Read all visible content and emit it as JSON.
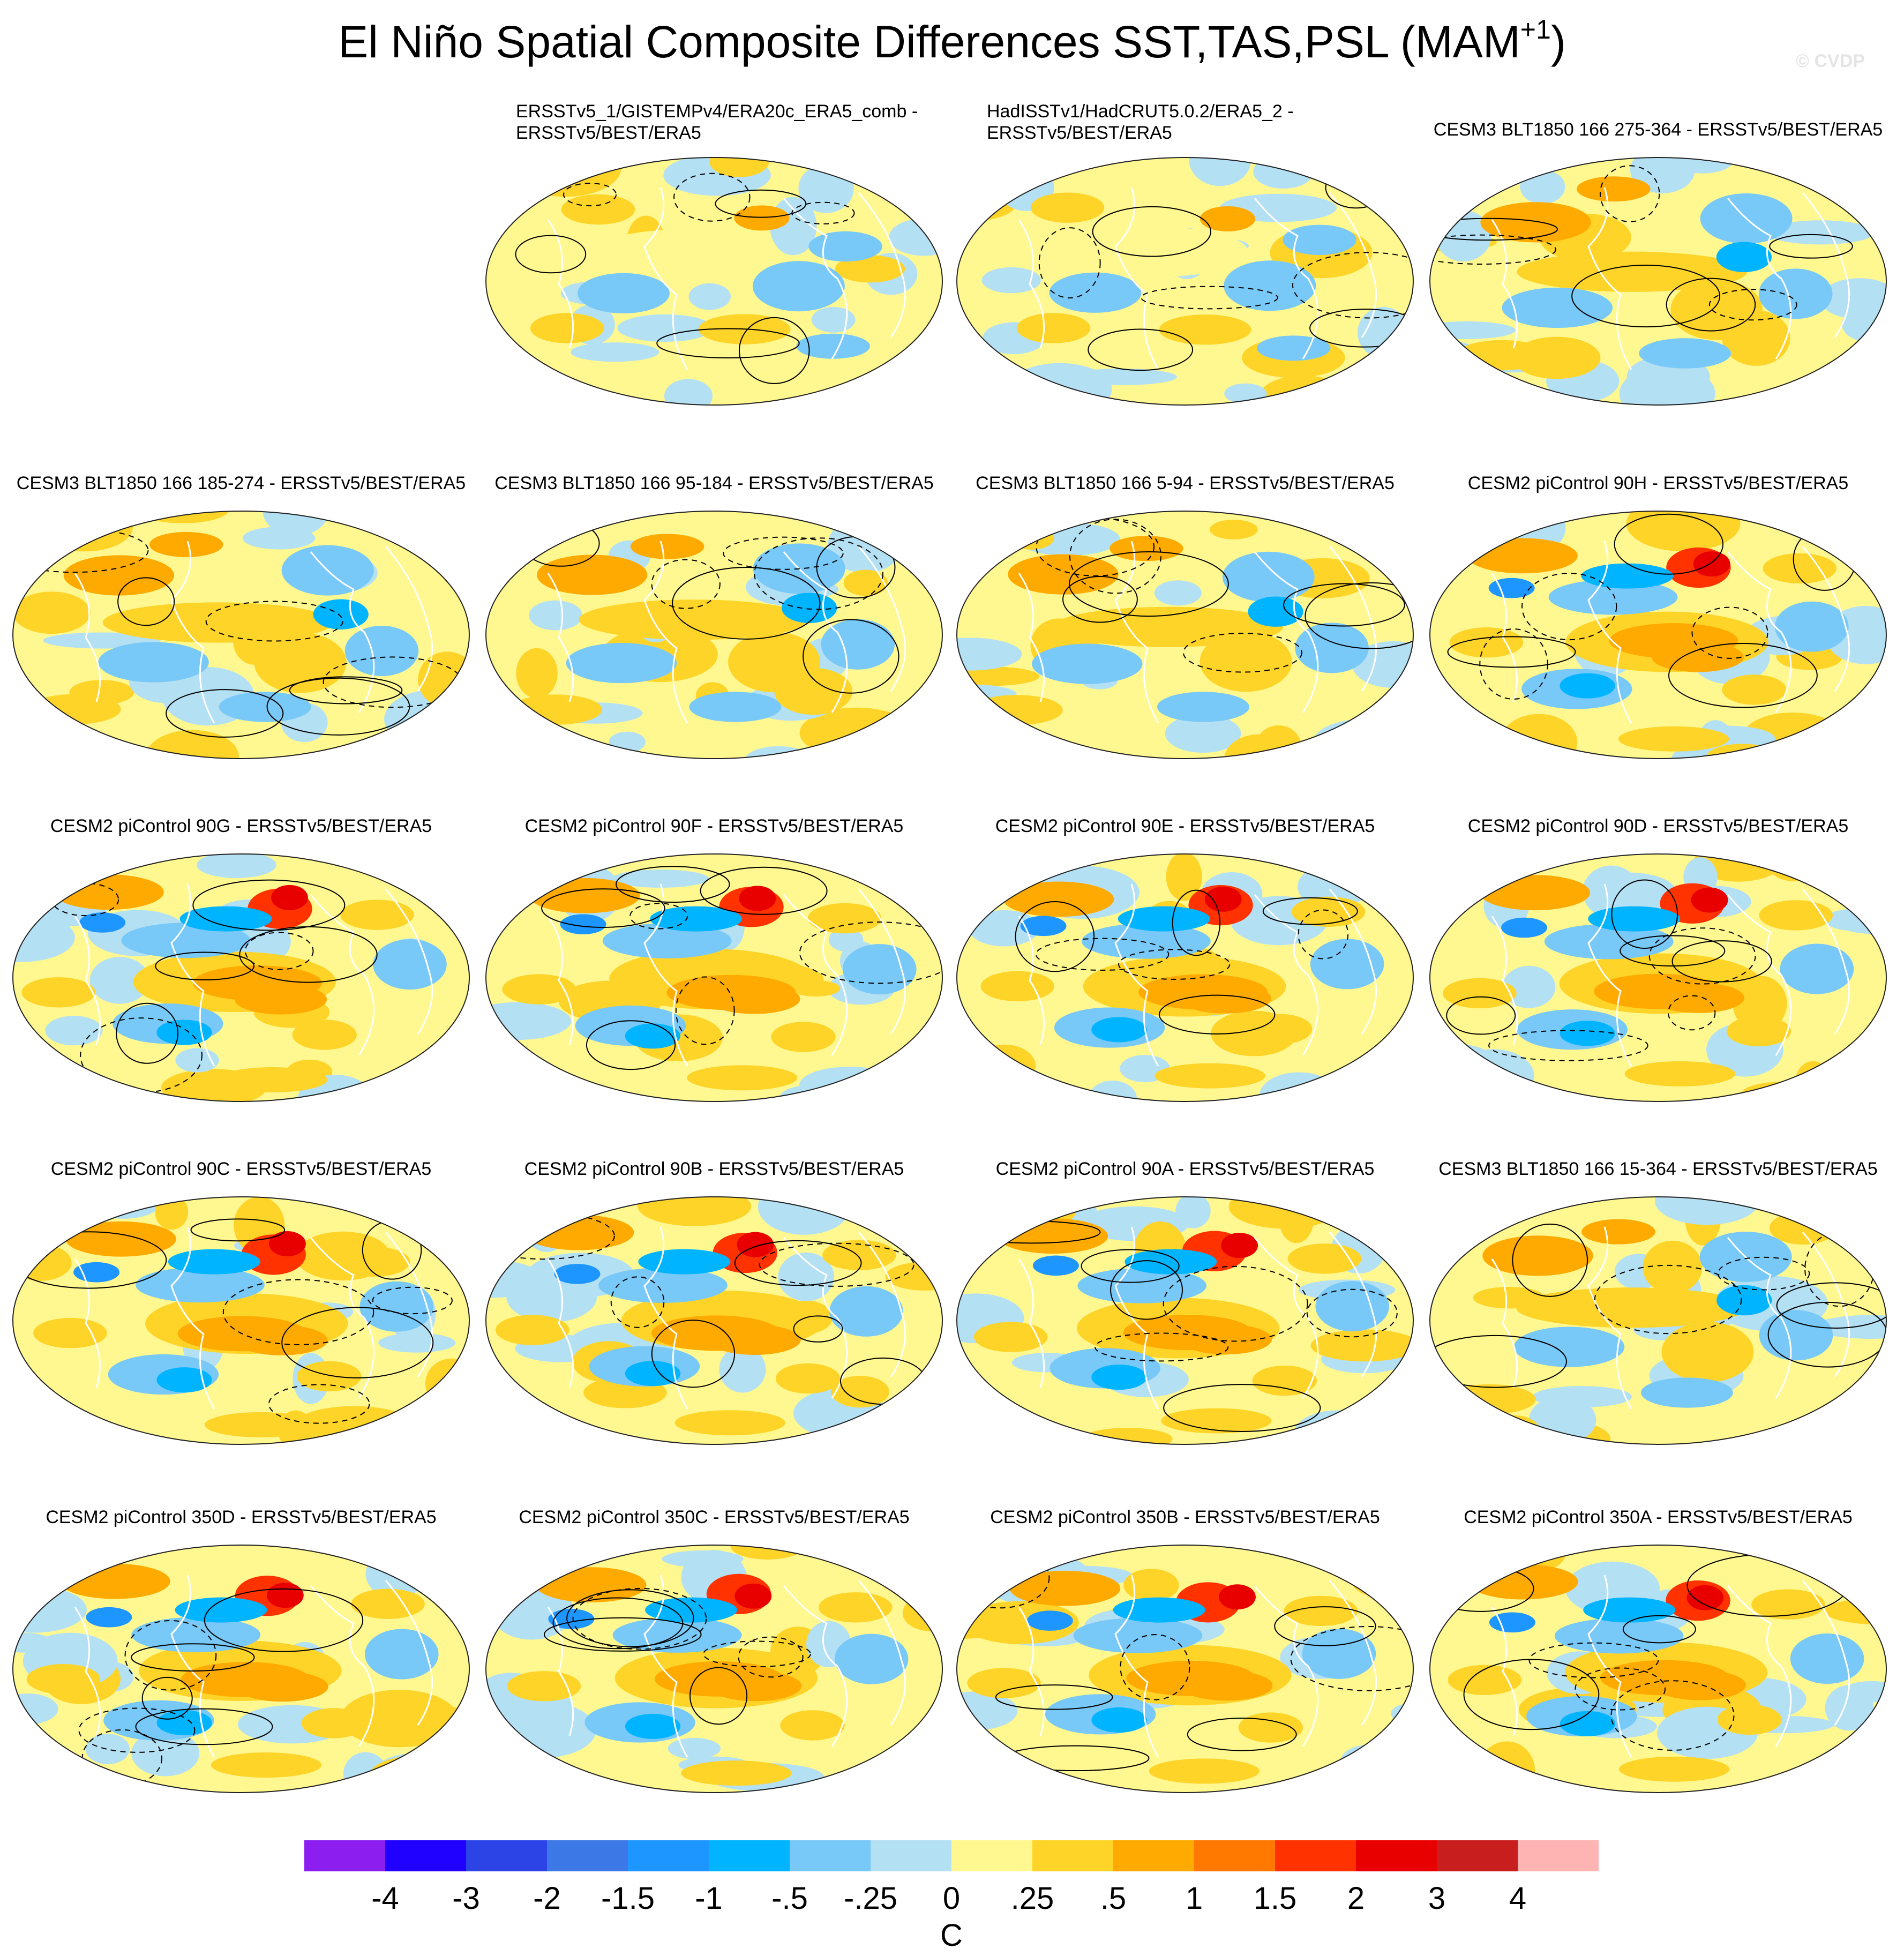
{
  "chart_data": {
    "type": "heatmap",
    "title": "El Niño Spatial Composite Differences SST,TAS,PSL (MAM",
    "title_superscript": "+1",
    "title_suffix": ")",
    "watermark": "© CVDP",
    "projection": "global map (Robinson-like ellipse), shaded SST/TAS differences with black PSL contours (solid positive, dashed negative) and white coastlines",
    "panels": [
      {
        "title_lines": [
          "ERSSTv5_1/GISTEMPv4/ERA20c_ERA5_comb -",
          "ERSSTv5/BEST/ERA5"
        ],
        "pattern": "obs"
      },
      {
        "title_lines": [
          "HadISSTv1/HadCRUT5.0.2/ERA5_2 -",
          "ERSSTv5/BEST/ERA5"
        ],
        "pattern": "obs"
      },
      {
        "title_lines": [
          "CESM3 BLT1850 166 275-364 - ERSSTv5/BEST/ERA5"
        ],
        "pattern": "cesm3"
      },
      {
        "title_lines": [
          "CESM3 BLT1850 166 185-274 - ERSSTv5/BEST/ERA5"
        ],
        "pattern": "cesm3"
      },
      {
        "title_lines": [
          "CESM3 BLT1850 166 95-184 - ERSSTv5/BEST/ERA5"
        ],
        "pattern": "cesm3"
      },
      {
        "title_lines": [
          "CESM3 BLT1850 166 5-94 - ERSSTv5/BEST/ERA5"
        ],
        "pattern": "cesm3"
      },
      {
        "title_lines": [
          "CESM2 piControl 90H - ERSSTv5/BEST/ERA5"
        ],
        "pattern": "cesm2"
      },
      {
        "title_lines": [
          "CESM2 piControl 90G - ERSSTv5/BEST/ERA5"
        ],
        "pattern": "cesm2"
      },
      {
        "title_lines": [
          "CESM2 piControl 90F - ERSSTv5/BEST/ERA5"
        ],
        "pattern": "cesm2"
      },
      {
        "title_lines": [
          "CESM2 piControl 90E - ERSSTv5/BEST/ERA5"
        ],
        "pattern": "cesm2"
      },
      {
        "title_lines": [
          "CESM2 piControl 90D - ERSSTv5/BEST/ERA5"
        ],
        "pattern": "cesm2"
      },
      {
        "title_lines": [
          "CESM2 piControl 90C - ERSSTv5/BEST/ERA5"
        ],
        "pattern": "cesm2"
      },
      {
        "title_lines": [
          "CESM2 piControl 90B - ERSSTv5/BEST/ERA5"
        ],
        "pattern": "cesm2"
      },
      {
        "title_lines": [
          "CESM2 piControl 90A - ERSSTv5/BEST/ERA5"
        ],
        "pattern": "cesm2"
      },
      {
        "title_lines": [
          "CESM3 BLT1850 166 15-364 - ERSSTv5/BEST/ERA5"
        ],
        "pattern": "cesm3"
      },
      {
        "title_lines": [
          "CESM2 piControl 350D - ERSSTv5/BEST/ERA5"
        ],
        "pattern": "cesm2"
      },
      {
        "title_lines": [
          "CESM2 piControl 350C - ERSSTv5/BEST/ERA5"
        ],
        "pattern": "cesm2"
      },
      {
        "title_lines": [
          "CESM2 piControl 350B - ERSSTv5/BEST/ERA5"
        ],
        "pattern": "cesm2"
      },
      {
        "title_lines": [
          "CESM2 piControl 350A - ERSSTv5/BEST/ERA5"
        ],
        "pattern": "cesm2"
      }
    ],
    "colorbar": {
      "label": "C",
      "ticks": [
        "-4",
        "-3",
        "-2",
        "-1.5",
        "-1",
        "-.5",
        "-.25",
        "0",
        ".25",
        ".5",
        "1",
        "1.5",
        "2",
        "3",
        "4"
      ],
      "colors": [
        "#8c1ef0",
        "#2000ff",
        "#2c44e6",
        "#3c78e6",
        "#1e96ff",
        "#00b4ff",
        "#78c8f8",
        "#b4e0f4",
        "#fff890",
        "#ffd428",
        "#ffaa00",
        "#ff7800",
        "#ff3200",
        "#e80000",
        "#c81e1e",
        "#ffb4b4"
      ]
    }
  }
}
